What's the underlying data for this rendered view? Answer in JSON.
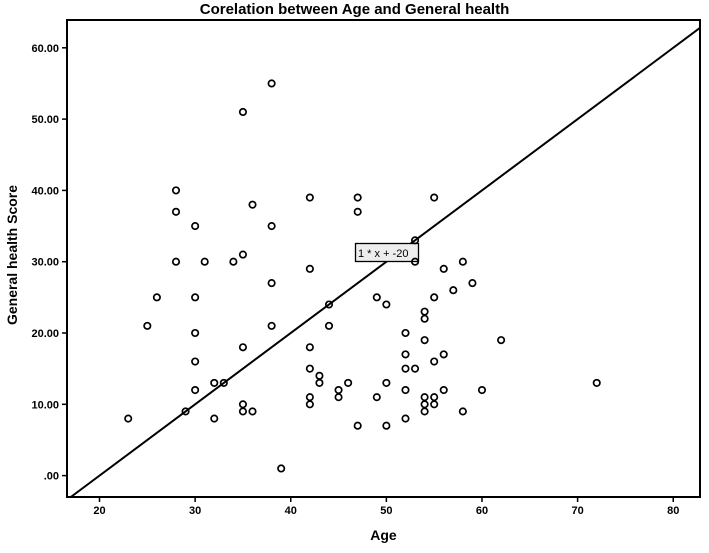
{
  "chart_data": {
    "type": "scatter",
    "title": "Corelation between Age and General health",
    "xlabel": "Age",
    "ylabel": "General health Score",
    "x_ticks": [
      20,
      30,
      40,
      50,
      60,
      70,
      80
    ],
    "x_tick_labels": [
      "20",
      "30",
      "40",
      "50",
      "60",
      "70",
      "80"
    ],
    "y_ticks": [
      0,
      10,
      20,
      30,
      40,
      50,
      60
    ],
    "y_tick_labels": [
      ".00",
      "10.00",
      "20.00",
      "30.00",
      "40.00",
      "50.00",
      "60.00"
    ],
    "xlim": [
      16.6,
      82.8
    ],
    "ylim": [
      -3.0,
      63.9
    ],
    "grid": false,
    "legend": "none",
    "marker": "open-circle",
    "marker_color": "#000000",
    "trendline": {
      "label": "1 * x + -20",
      "slope": 1,
      "intercept": -20
    },
    "points": [
      [
        23,
        8
      ],
      [
        25,
        21
      ],
      [
        26,
        25
      ],
      [
        28,
        30
      ],
      [
        28,
        37
      ],
      [
        28,
        40
      ],
      [
        29,
        9
      ],
      [
        30,
        12
      ],
      [
        30,
        16
      ],
      [
        30,
        20
      ],
      [
        30,
        25
      ],
      [
        30,
        35
      ],
      [
        31,
        30
      ],
      [
        32,
        8
      ],
      [
        32,
        13
      ],
      [
        33,
        13
      ],
      [
        34,
        30
      ],
      [
        35,
        9
      ],
      [
        35,
        10
      ],
      [
        35,
        18
      ],
      [
        35,
        31
      ],
      [
        35,
        51
      ],
      [
        36,
        9
      ],
      [
        36,
        38
      ],
      [
        38,
        21
      ],
      [
        38,
        27
      ],
      [
        38,
        35
      ],
      [
        38,
        55
      ],
      [
        39,
        1
      ],
      [
        42,
        10
      ],
      [
        42,
        11
      ],
      [
        42,
        15
      ],
      [
        42,
        18
      ],
      [
        42,
        29
      ],
      [
        42,
        39
      ],
      [
        43,
        13
      ],
      [
        43,
        14
      ],
      [
        44,
        21
      ],
      [
        44,
        24
      ],
      [
        45,
        11
      ],
      [
        45,
        12
      ],
      [
        46,
        13
      ],
      [
        47,
        7
      ],
      [
        47,
        37
      ],
      [
        47,
        39
      ],
      [
        49,
        11
      ],
      [
        49,
        25
      ],
      [
        50,
        7
      ],
      [
        50,
        13
      ],
      [
        50,
        24
      ],
      [
        52,
        8
      ],
      [
        52,
        12
      ],
      [
        52,
        15
      ],
      [
        52,
        17
      ],
      [
        52,
        20
      ],
      [
        53,
        15
      ],
      [
        53,
        30
      ],
      [
        53,
        33
      ],
      [
        54,
        9
      ],
      [
        54,
        10
      ],
      [
        54,
        11
      ],
      [
        54,
        19
      ],
      [
        54,
        22
      ],
      [
        54,
        23
      ],
      [
        55,
        10
      ],
      [
        55,
        11
      ],
      [
        55,
        16
      ],
      [
        55,
        25
      ],
      [
        55,
        39
      ],
      [
        56,
        12
      ],
      [
        56,
        17
      ],
      [
        56,
        29
      ],
      [
        57,
        26
      ],
      [
        58,
        9
      ],
      [
        58,
        30
      ],
      [
        59,
        27
      ],
      [
        60,
        12
      ],
      [
        62,
        19
      ],
      [
        72,
        13
      ]
    ]
  }
}
